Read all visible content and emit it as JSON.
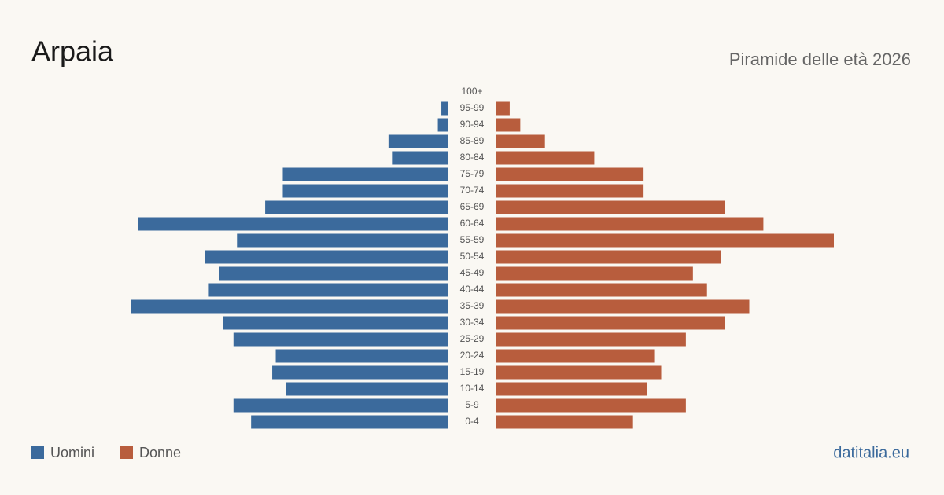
{
  "chart_data": {
    "type": "pyramid",
    "title": "Arpaia",
    "subtitle": "Piramide delle età 2026",
    "source": "datitalia.eu",
    "categories": [
      "100+",
      "95-99",
      "90-94",
      "85-89",
      "80-84",
      "75-79",
      "70-74",
      "65-69",
      "60-64",
      "55-59",
      "50-54",
      "45-49",
      "40-44",
      "35-39",
      "30-34",
      "25-29",
      "20-24",
      "15-19",
      "10-14",
      "5-9",
      "0-4"
    ],
    "series": [
      {
        "name": "Uomini",
        "color": "#3b6a9c",
        "values": [
          0,
          2,
          3,
          17,
          16,
          47,
          47,
          52,
          88,
          60,
          69,
          65,
          68,
          90,
          64,
          61,
          49,
          50,
          46,
          61,
          56
        ]
      },
      {
        "name": "Donne",
        "color": "#b85d3d",
        "values": [
          0,
          4,
          7,
          14,
          28,
          42,
          42,
          65,
          76,
          96,
          64,
          56,
          60,
          72,
          65,
          54,
          45,
          47,
          43,
          54,
          39
        ]
      }
    ]
  }
}
